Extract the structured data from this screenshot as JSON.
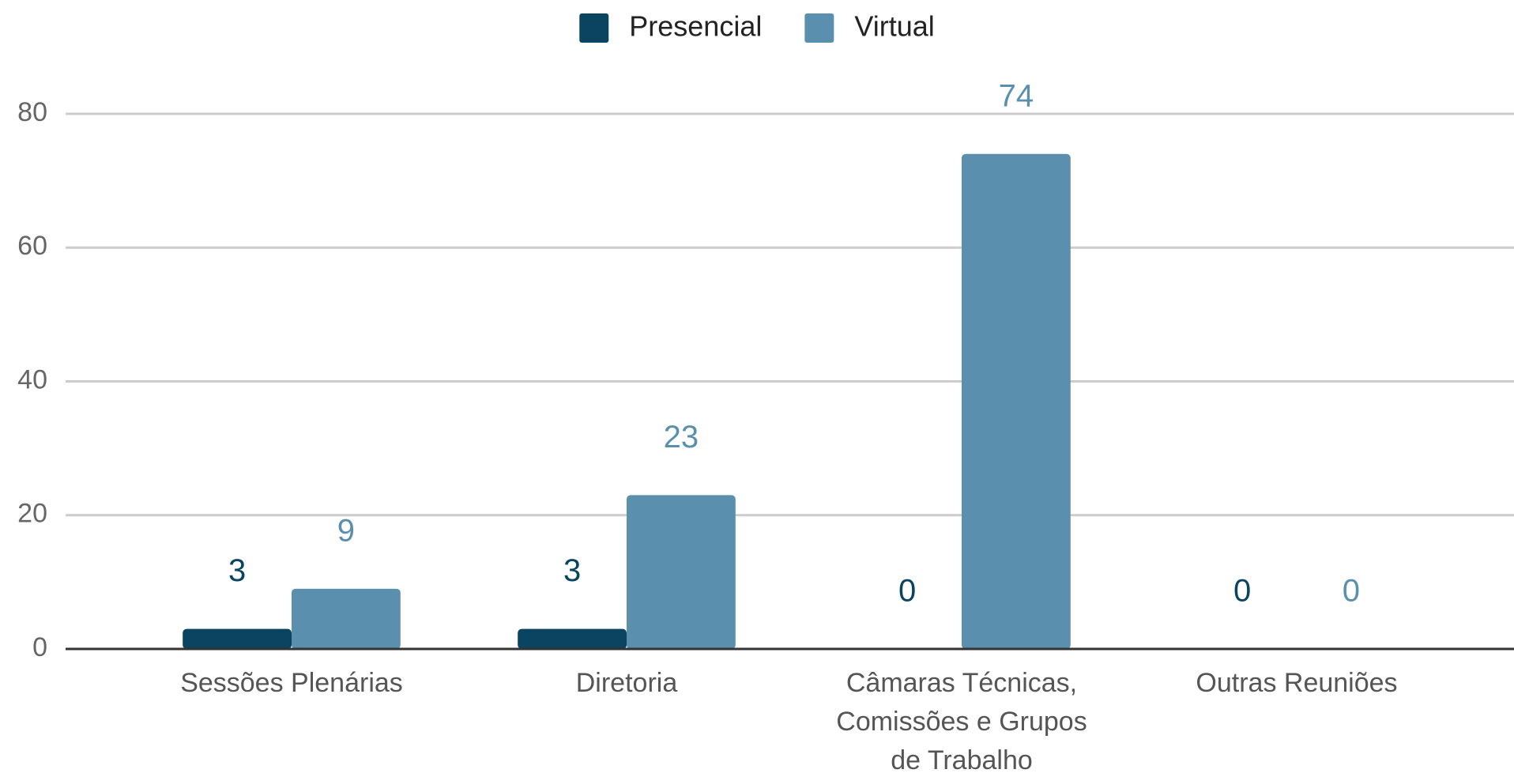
{
  "chart_data": {
    "type": "bar",
    "categories": [
      "Sessões Plenárias",
      "Diretoria",
      "Câmaras Técnicas, Comissões e Grupos de Trabalho",
      "Outras Reuniões"
    ],
    "series": [
      {
        "name": "Presencial",
        "color": "#0b4460",
        "values": [
          3,
          3,
          0,
          0
        ]
      },
      {
        "name": "Virtual",
        "color": "#5a90ae",
        "values": [
          9,
          23,
          74,
          0
        ]
      }
    ],
    "ylim": [
      0,
      80
    ],
    "yticks": [
      0,
      20,
      40,
      60,
      80
    ],
    "grid": true,
    "legend": "top"
  }
}
